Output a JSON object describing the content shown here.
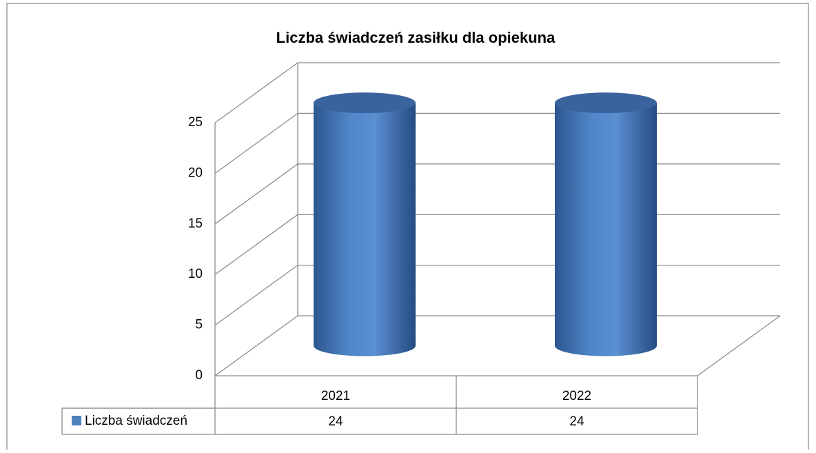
{
  "chart_data": {
    "type": "bar3d",
    "title": "Liczba świadczeń zasiłku dla opiekuna",
    "categories": [
      "2021",
      "2022"
    ],
    "series": [
      {
        "name": "Liczba świadczeń",
        "color": "#4f81bd",
        "values": [
          24,
          24
        ]
      }
    ],
    "ylim": [
      0,
      25
    ],
    "yticks": [
      0,
      5,
      10,
      15,
      20,
      25
    ],
    "grid": true
  }
}
